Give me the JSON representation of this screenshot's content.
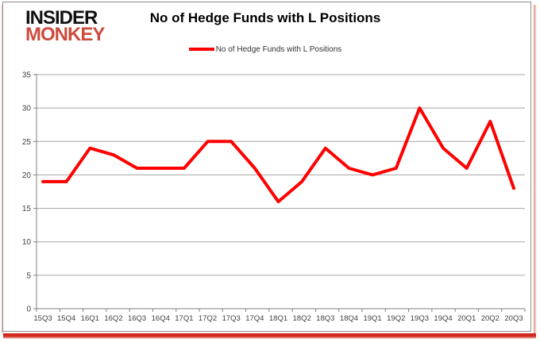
{
  "logo": {
    "line1": "INSIDER",
    "line2": "MONKEY"
  },
  "header": {
    "title": "No of Hedge Funds with L Positions"
  },
  "legend": {
    "label": "No of Hedge Funds with L Positions"
  },
  "colors": {
    "series_line": "#ff0000",
    "gridline": "#a6a6a6",
    "axis": "#808080",
    "tick_text": "#3f3f3f",
    "logo_black": "#121212",
    "logo_red": "#cd4a3d",
    "page_edge_red": "#d02b1e"
  },
  "chart_data": {
    "type": "line",
    "title": "No of Hedge Funds with L Positions",
    "categories": [
      "15Q3",
      "15Q4",
      "16Q1",
      "16Q2",
      "16Q3",
      "16Q4",
      "17Q1",
      "17Q2",
      "17Q3",
      "17Q4",
      "18Q1",
      "18Q2",
      "18Q3",
      "18Q4",
      "19Q1",
      "19Q2",
      "19Q3",
      "19Q4",
      "20Q1",
      "20Q2",
      "20Q3"
    ],
    "series": [
      {
        "name": "No of Hedge Funds with L Positions",
        "values": [
          19,
          19,
          24,
          23,
          21,
          21,
          21,
          25,
          25,
          21,
          16,
          19,
          24,
          21,
          20,
          21,
          30,
          24,
          21,
          28,
          18
        ]
      }
    ],
    "xlabel": "",
    "ylabel": "",
    "ylim": [
      0,
      35
    ],
    "yticks": [
      0,
      5,
      10,
      15,
      20,
      25,
      30,
      35
    ],
    "grid": true,
    "legend_position": "top"
  }
}
